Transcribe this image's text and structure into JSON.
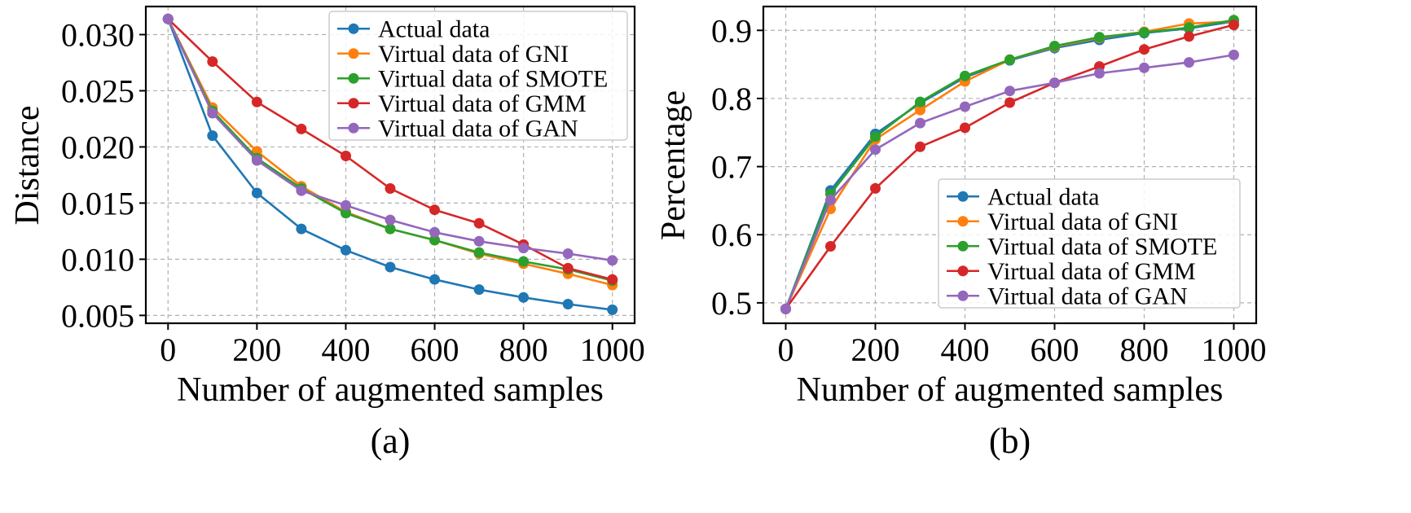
{
  "chart_data": [
    {
      "type": "line",
      "caption": "(a)",
      "xlabel": "Number of augmented samples",
      "ylabel": "Distance",
      "x": [
        0,
        100,
        200,
        300,
        400,
        500,
        600,
        700,
        800,
        900,
        1000
      ],
      "xlim": [
        -50,
        1050
      ],
      "ylim": [
        0.0043,
        0.0325
      ],
      "xticks": [
        0,
        200,
        400,
        600,
        800,
        1000
      ],
      "yticks": [
        0.005,
        0.01,
        0.015,
        0.02,
        0.025,
        0.03
      ],
      "ytick_labels": [
        "0.005",
        "0.010",
        "0.015",
        "0.020",
        "0.025",
        "0.030"
      ],
      "grid": true,
      "legend_position": "top-right",
      "series": [
        {
          "name": "Actual data",
          "color": "#1f77b4",
          "values": [
            0.0314,
            0.021,
            0.0159,
            0.0127,
            0.0108,
            0.0093,
            0.0082,
            0.0073,
            0.0066,
            0.006,
            0.0055
          ]
        },
        {
          "name": "Virtual data of GNI",
          "color": "#ff7f0e",
          "values": [
            0.0314,
            0.0235,
            0.0196,
            0.0165,
            0.0142,
            0.0127,
            0.0117,
            0.0105,
            0.0096,
            0.0087,
            0.0077
          ]
        },
        {
          "name": "Virtual data of SMOTE",
          "color": "#2ca02c",
          "values": [
            0.0314,
            0.0232,
            0.019,
            0.0163,
            0.0141,
            0.0127,
            0.0117,
            0.0106,
            0.0098,
            0.0091,
            0.0081
          ]
        },
        {
          "name": "Virtual data of GMM",
          "color": "#d62728",
          "values": [
            0.0314,
            0.0276,
            0.024,
            0.0216,
            0.0192,
            0.0163,
            0.0144,
            0.0132,
            0.0113,
            0.0092,
            0.0082
          ]
        },
        {
          "name": "Virtual data of GAN",
          "color": "#9467bd",
          "values": [
            0.0314,
            0.023,
            0.0188,
            0.0161,
            0.0148,
            0.0135,
            0.0124,
            0.0116,
            0.011,
            0.0105,
            0.0099
          ]
        }
      ]
    },
    {
      "type": "line",
      "caption": "(b)",
      "xlabel": "Number of augmented samples",
      "ylabel": "Percentage",
      "x": [
        0,
        100,
        200,
        300,
        400,
        500,
        600,
        700,
        800,
        900,
        1000
      ],
      "xlim": [
        -50,
        1050
      ],
      "ylim": [
        0.47,
        0.935
      ],
      "xticks": [
        0,
        200,
        400,
        600,
        800,
        1000
      ],
      "yticks": [
        0.5,
        0.6,
        0.7,
        0.8,
        0.9
      ],
      "ytick_labels": [
        "0.5",
        "0.6",
        "0.7",
        "0.8",
        "0.9"
      ],
      "grid": true,
      "legend_position": "lower-right",
      "series": [
        {
          "name": "Actual data",
          "color": "#1f77b4",
          "values": [
            0.491,
            0.665,
            0.748,
            0.793,
            0.831,
            0.856,
            0.874,
            0.886,
            0.896,
            0.903,
            0.913
          ]
        },
        {
          "name": "Virtual data of GNI",
          "color": "#ff7f0e",
          "values": [
            0.491,
            0.638,
            0.74,
            0.783,
            0.825,
            0.857,
            0.876,
            0.889,
            0.898,
            0.91,
            0.913
          ]
        },
        {
          "name": "Virtual data of SMOTE",
          "color": "#2ca02c",
          "values": [
            0.491,
            0.66,
            0.744,
            0.795,
            0.833,
            0.857,
            0.877,
            0.89,
            0.897,
            0.904,
            0.915
          ]
        },
        {
          "name": "Virtual data of GMM",
          "color": "#d62728",
          "values": [
            0.491,
            0.583,
            0.668,
            0.729,
            0.757,
            0.794,
            0.823,
            0.847,
            0.872,
            0.891,
            0.908
          ]
        },
        {
          "name": "Virtual data of GAN",
          "color": "#9467bd",
          "values": [
            0.491,
            0.651,
            0.725,
            0.764,
            0.788,
            0.811,
            0.823,
            0.837,
            0.845,
            0.853,
            0.864
          ]
        }
      ]
    }
  ]
}
